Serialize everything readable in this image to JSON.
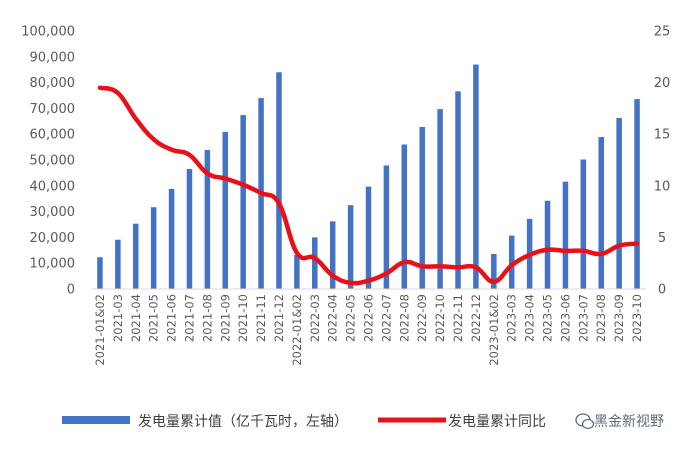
{
  "chart_data": {
    "type": "bar+line",
    "categories": [
      "2021-01&02",
      "2021-03",
      "2021-04",
      "2021-05",
      "2021-06",
      "2021-07",
      "2021-08",
      "2021-09",
      "2021-10",
      "2021-11",
      "2021-12",
      "2022-01&02",
      "2022-03",
      "2022-04",
      "2022-05",
      "2022-06",
      "2022-07",
      "2022-08",
      "2022-09",
      "2022-10",
      "2022-11",
      "2022-12",
      "2023-01&02",
      "2023-03",
      "2023-04",
      "2023-05",
      "2023-06",
      "2023-07",
      "2023-08",
      "2023-09",
      "2023-10"
    ],
    "series": [
      {
        "name": "发电量累计值（亿千瓦时，左轴）",
        "type": "bar",
        "axis": "left",
        "color": "#4472c4",
        "values": [
          12300,
          19100,
          25300,
          31700,
          38800,
          46500,
          53900,
          60900,
          67400,
          74000,
          84000,
          13200,
          20000,
          26200,
          32500,
          39700,
          47900,
          56000,
          62800,
          69700,
          76600,
          87000,
          13600,
          20700,
          27200,
          34200,
          41600,
          50200,
          58900,
          66300,
          73600
        ]
      },
      {
        "name": "发电量累计同比",
        "type": "line",
        "axis": "right",
        "color": "#e8111a",
        "values": [
          19.5,
          19.0,
          16.5,
          14.5,
          13.5,
          13.0,
          11.2,
          10.7,
          10.1,
          9.3,
          8.3,
          3.5,
          3.0,
          1.3,
          0.6,
          0.8,
          1.5,
          2.6,
          2.2,
          2.2,
          2.1,
          2.1,
          0.7,
          2.3,
          3.3,
          3.8,
          3.7,
          3.7,
          3.4,
          4.2,
          4.4
        ]
      }
    ],
    "y_left": {
      "min": 0,
      "max": 100000,
      "ticks": [
        "0",
        "10,000",
        "20,000",
        "30,000",
        "40,000",
        "50,000",
        "60,000",
        "70,000",
        "80,000",
        "90,000",
        "100,000"
      ]
    },
    "y_right": {
      "min": 0,
      "max": 25,
      "ticks": [
        "0",
        "5",
        "10",
        "15",
        "20",
        "25"
      ]
    },
    "legend_position": "bottom",
    "grid": false
  },
  "legend": {
    "bar_label": "发电量累计值（亿千瓦时，左轴）",
    "line_label": "发电量累计同比"
  },
  "watermark": {
    "text": "黑金新视野",
    "icon": "wechat-icon"
  }
}
